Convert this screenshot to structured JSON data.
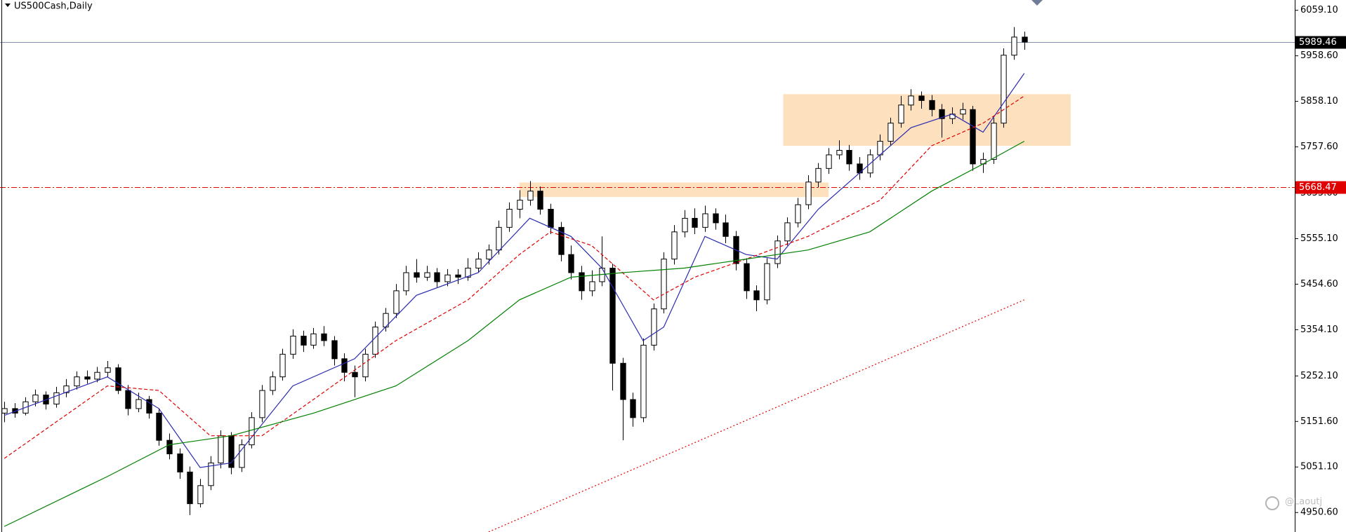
{
  "chart_data": {
    "type": "candlestick",
    "title": "US500Cash,Daily",
    "xlim": [
      -0.42,
      125.25
    ],
    "ylim": [
      4907.6,
      6081.8
    ],
    "yticks": [
      {
        "value": 6059.1,
        "label": "6059.10"
      },
      {
        "value": 5958.6,
        "label": "5958.60"
      },
      {
        "value": 5858.1,
        "label": "5858.10"
      },
      {
        "value": 5757.6,
        "label": "5757.60"
      },
      {
        "value": 5655.6,
        "label": "5655.60"
      },
      {
        "value": 5555.1,
        "label": "5555.10"
      },
      {
        "value": 5454.6,
        "label": "5454.60"
      },
      {
        "value": 5354.1,
        "label": "5354.10"
      },
      {
        "value": 5252.1,
        "label": "5252.10"
      },
      {
        "value": 5151.6,
        "label": "5151.60"
      },
      {
        "value": 5051.1,
        "label": "5051.10"
      },
      {
        "value": 4950.6,
        "label": "4950.60"
      }
    ],
    "up_color": "#ffffff",
    "down_color": "#000000",
    "ohlc": [
      [
        5170,
        5195,
        5150,
        5180
      ],
      [
        5180,
        5192,
        5160,
        5170
      ],
      [
        5170,
        5205,
        5165,
        5195
      ],
      [
        5195,
        5222,
        5185,
        5210
      ],
      [
        5210,
        5218,
        5178,
        5190
      ],
      [
        5190,
        5228,
        5182,
        5215
      ],
      [
        5215,
        5245,
        5205,
        5230
      ],
      [
        5230,
        5262,
        5222,
        5250
      ],
      [
        5250,
        5264,
        5235,
        5245
      ],
      [
        5245,
        5272,
        5238,
        5260
      ],
      [
        5260,
        5285,
        5250,
        5270
      ],
      [
        5270,
        5278,
        5212,
        5220
      ],
      [
        5220,
        5232,
        5165,
        5180
      ],
      [
        5180,
        5215,
        5172,
        5200
      ],
      [
        5200,
        5208,
        5158,
        5170
      ],
      [
        5170,
        5180,
        5098,
        5110
      ],
      [
        5110,
        5125,
        5068,
        5080
      ],
      [
        5080,
        5092,
        5025,
        5040
      ],
      [
        5040,
        5052,
        4945,
        4970
      ],
      [
        4970,
        5025,
        4962,
        5010
      ],
      [
        5010,
        5075,
        5000,
        5060
      ],
      [
        5060,
        5132,
        5048,
        5120
      ],
      [
        5120,
        5128,
        5035,
        5050
      ],
      [
        5050,
        5112,
        5040,
        5100
      ],
      [
        5100,
        5172,
        5092,
        5160
      ],
      [
        5160,
        5232,
        5150,
        5220
      ],
      [
        5220,
        5262,
        5210,
        5250
      ],
      [
        5250,
        5312,
        5242,
        5300
      ],
      [
        5300,
        5355,
        5290,
        5340
      ],
      [
        5340,
        5352,
        5305,
        5320
      ],
      [
        5320,
        5358,
        5312,
        5345
      ],
      [
        5345,
        5362,
        5318,
        5330
      ],
      [
        5330,
        5340,
        5275,
        5290
      ],
      [
        5290,
        5302,
        5240,
        5260
      ],
      [
        5260,
        5275,
        5205,
        5250
      ],
      [
        5250,
        5312,
        5240,
        5300
      ],
      [
        5300,
        5372,
        5292,
        5360
      ],
      [
        5360,
        5402,
        5350,
        5390
      ],
      [
        5390,
        5455,
        5380,
        5440
      ],
      [
        5440,
        5495,
        5430,
        5480
      ],
      [
        5480,
        5510,
        5458,
        5470
      ],
      [
        5470,
        5495,
        5462,
        5480
      ],
      [
        5480,
        5490,
        5448,
        5460
      ],
      [
        5460,
        5488,
        5450,
        5475
      ],
      [
        5475,
        5488,
        5455,
        5470
      ],
      [
        5470,
        5512,
        5462,
        5490
      ],
      [
        5490,
        5525,
        5480,
        5510
      ],
      [
        5510,
        5542,
        5498,
        5530
      ],
      [
        5530,
        5595,
        5520,
        5580
      ],
      [
        5580,
        5635,
        5570,
        5620
      ],
      [
        5620,
        5662,
        5600,
        5640
      ],
      [
        5640,
        5682,
        5628,
        5660
      ],
      [
        5660,
        5670,
        5608,
        5620
      ],
      [
        5620,
        5632,
        5565,
        5580
      ],
      [
        5580,
        5592,
        5505,
        5520
      ],
      [
        5520,
        5540,
        5465,
        5480
      ],
      [
        5480,
        5495,
        5420,
        5440
      ],
      [
        5440,
        5485,
        5428,
        5460
      ],
      [
        5460,
        5560,
        5450,
        5490
      ],
      [
        5490,
        5500,
        5220,
        5280
      ],
      [
        5280,
        5292,
        5110,
        5200
      ],
      [
        5200,
        5215,
        5140,
        5160
      ],
      [
        5160,
        5335,
        5150,
        5320
      ],
      [
        5320,
        5412,
        5308,
        5400
      ],
      [
        5400,
        5525,
        5390,
        5510
      ],
      [
        5510,
        5585,
        5498,
        5570
      ],
      [
        5570,
        5618,
        5558,
        5600
      ],
      [
        5600,
        5622,
        5565,
        5580
      ],
      [
        5580,
        5628,
        5570,
        5610
      ],
      [
        5610,
        5622,
        5575,
        5590
      ],
      [
        5590,
        5608,
        5545,
        5560
      ],
      [
        5560,
        5572,
        5485,
        5500
      ],
      [
        5500,
        5512,
        5422,
        5440
      ],
      [
        5440,
        5452,
        5395,
        5420
      ],
      [
        5420,
        5512,
        5410,
        5500
      ],
      [
        5500,
        5562,
        5490,
        5550
      ],
      [
        5550,
        5602,
        5540,
        5590
      ],
      [
        5590,
        5645,
        5580,
        5630
      ],
      [
        5630,
        5695,
        5620,
        5680
      ],
      [
        5680,
        5722,
        5668,
        5710
      ],
      [
        5710,
        5755,
        5698,
        5740
      ],
      [
        5740,
        5772,
        5730,
        5750
      ],
      [
        5750,
        5762,
        5705,
        5720
      ],
      [
        5720,
        5735,
        5685,
        5700
      ],
      [
        5700,
        5752,
        5690,
        5740
      ],
      [
        5740,
        5785,
        5728,
        5770
      ],
      [
        5770,
        5822,
        5760,
        5810
      ],
      [
        5810,
        5870,
        5800,
        5850
      ],
      [
        5850,
        5885,
        5838,
        5870
      ],
      [
        5870,
        5880,
        5842,
        5860
      ],
      [
        5860,
        5872,
        5825,
        5840
      ],
      [
        5840,
        5852,
        5778,
        5820
      ],
      [
        5820,
        5845,
        5808,
        5830
      ],
      [
        5830,
        5855,
        5818,
        5840
      ],
      [
        5840,
        5848,
        5705,
        5720
      ],
      [
        5720,
        5745,
        5700,
        5730
      ],
      [
        5730,
        5822,
        5720,
        5810
      ],
      [
        5810,
        5975,
        5800,
        5960
      ],
      [
        5960,
        6022,
        5950,
        6000
      ],
      [
        6000,
        6012,
        5972,
        5989
      ]
    ],
    "moving_averages": [
      {
        "color": "#2b2bb0",
        "dash": "none",
        "x": [
          0,
          10,
          15,
          19,
          22,
          28,
          34,
          40,
          46,
          51,
          55,
          58,
          62,
          64,
          68,
          72,
          75,
          79,
          84,
          88,
          92,
          95,
          99
        ],
        "values": [
          5165,
          5250,
          5180,
          5050,
          5060,
          5230,
          5290,
          5430,
          5480,
          5600,
          5560,
          5490,
          5330,
          5360,
          5560,
          5520,
          5510,
          5620,
          5720,
          5800,
          5830,
          5790,
          5920
        ]
      },
      {
        "color": "#e00000",
        "dash": "5 3",
        "x": [
          0,
          10,
          15,
          20,
          25,
          30,
          38,
          45,
          50,
          53,
          57,
          60,
          63,
          67,
          72,
          78,
          85,
          90,
          95,
          99
        ],
        "values": [
          5070,
          5230,
          5220,
          5120,
          5120,
          5200,
          5330,
          5420,
          5520,
          5570,
          5540,
          5480,
          5420,
          5470,
          5510,
          5560,
          5640,
          5760,
          5810,
          5870
        ]
      },
      {
        "color": "#008000",
        "dash": "none",
        "x": [
          0,
          10,
          16,
          22,
          30,
          38,
          45,
          50,
          55,
          60,
          66,
          72,
          78,
          84,
          90,
          95,
          99
        ],
        "values": [
          4920,
          5030,
          5100,
          5120,
          5170,
          5230,
          5330,
          5420,
          5470,
          5480,
          5490,
          5510,
          5530,
          5570,
          5660,
          5720,
          5770
        ]
      },
      {
        "color": "#e00000",
        "dash": "2 3",
        "x": [
          47,
          99
        ],
        "values": [
          4907.6,
          5420
        ]
      }
    ],
    "levels": [
      {
        "value": 5989.46,
        "color": "#7f8fae",
        "dash": "none",
        "label_bg": "#000000",
        "label_color": "#ffffff"
      },
      {
        "value": 5668.47,
        "color": "#e00000",
        "dash": "8 3 2 3",
        "label_bg": "#e00000",
        "label_color": "#ffffff"
      }
    ],
    "zones": [
      {
        "x": [
          50,
          80
        ],
        "y": [
          5647,
          5679
        ],
        "color": "#fde0bd"
      },
      {
        "x": [
          75.6,
          103.5
        ],
        "y": [
          5760,
          5874
        ],
        "color": "#fde0bd"
      }
    ]
  },
  "watermark": "@Laoutj"
}
